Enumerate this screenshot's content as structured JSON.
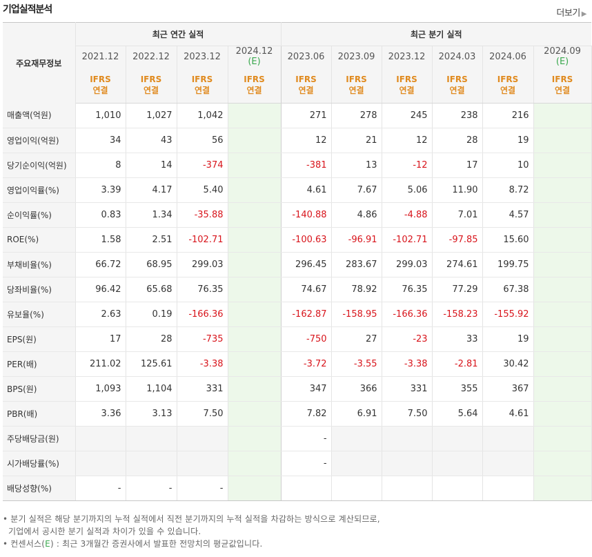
{
  "title": "기업실적분석",
  "more_label": "더보기",
  "header": {
    "label": "주요재무정보",
    "annual_group": "최근 연간 실적",
    "quarter_group": "최근 분기 실적",
    "annual_periods": [
      "2021.12",
      "2022.12",
      "2023.12",
      "2024.12"
    ],
    "quarter_periods": [
      "2023.06",
      "2023.09",
      "2023.12",
      "2024.03",
      "2024.06",
      "2024.09"
    ],
    "estimate_mark": "(E)",
    "ifrs": "IFRS",
    "consolidated": "연결"
  },
  "rows": [
    {
      "label": "매출액(억원)",
      "annual": [
        "1,010",
        "1,027",
        "1,042",
        ""
      ],
      "quarter": [
        "271",
        "278",
        "245",
        "238",
        "216",
        ""
      ]
    },
    {
      "label": "영업이익(억원)",
      "annual": [
        "34",
        "43",
        "56",
        ""
      ],
      "quarter": [
        "12",
        "21",
        "12",
        "28",
        "19",
        ""
      ]
    },
    {
      "label": "당기순이익(억원)",
      "annual": [
        "8",
        "14",
        "-374",
        ""
      ],
      "quarter": [
        "-381",
        "13",
        "-12",
        "17",
        "10",
        ""
      ]
    },
    {
      "label": "영업이익률(%)",
      "annual": [
        "3.39",
        "4.17",
        "5.40",
        ""
      ],
      "quarter": [
        "4.61",
        "7.67",
        "5.06",
        "11.90",
        "8.72",
        ""
      ]
    },
    {
      "label": "순이익률(%)",
      "annual": [
        "0.83",
        "1.34",
        "-35.88",
        ""
      ],
      "quarter": [
        "-140.88",
        "4.86",
        "-4.88",
        "7.01",
        "4.57",
        ""
      ]
    },
    {
      "label": "ROE(%)",
      "annual": [
        "1.58",
        "2.51",
        "-102.71",
        ""
      ],
      "quarter": [
        "-100.63",
        "-96.91",
        "-102.71",
        "-97.85",
        "15.60",
        ""
      ]
    },
    {
      "label": "부채비율(%)",
      "annual": [
        "66.72",
        "68.95",
        "299.03",
        ""
      ],
      "quarter": [
        "296.45",
        "283.67",
        "299.03",
        "274.61",
        "199.75",
        ""
      ]
    },
    {
      "label": "당좌비율(%)",
      "annual": [
        "96.42",
        "65.68",
        "76.35",
        ""
      ],
      "quarter": [
        "74.67",
        "78.92",
        "76.35",
        "77.29",
        "67.38",
        ""
      ]
    },
    {
      "label": "유보율(%)",
      "annual": [
        "2.63",
        "0.19",
        "-166.36",
        ""
      ],
      "quarter": [
        "-162.87",
        "-158.95",
        "-166.36",
        "-158.23",
        "-155.92",
        ""
      ]
    },
    {
      "label": "EPS(원)",
      "annual": [
        "17",
        "28",
        "-735",
        ""
      ],
      "quarter": [
        "-750",
        "27",
        "-23",
        "33",
        "19",
        ""
      ]
    },
    {
      "label": "PER(배)",
      "annual": [
        "211.02",
        "125.61",
        "-3.38",
        ""
      ],
      "quarter": [
        "-3.72",
        "-3.55",
        "-3.38",
        "-2.81",
        "30.42",
        ""
      ]
    },
    {
      "label": "BPS(원)",
      "annual": [
        "1,093",
        "1,104",
        "331",
        ""
      ],
      "quarter": [
        "347",
        "366",
        "331",
        "355",
        "367",
        ""
      ]
    },
    {
      "label": "PBR(배)",
      "annual": [
        "3.36",
        "3.13",
        "7.50",
        ""
      ],
      "quarter": [
        "7.82",
        "6.91",
        "7.50",
        "5.64",
        "4.61",
        ""
      ]
    },
    {
      "label": "주당배당금(원)",
      "annual": [
        "",
        "",
        "",
        ""
      ],
      "quarter": [
        "-",
        "",
        "",
        "",
        "",
        ""
      ]
    },
    {
      "label": "시가배당률(%)",
      "annual": [
        "",
        "",
        "",
        ""
      ],
      "quarter": [
        "-",
        "",
        "",
        "",
        "",
        ""
      ]
    },
    {
      "label": "배당성향(%)",
      "annual": [
        "-",
        "-",
        "-",
        ""
      ],
      "quarter": [
        "",
        "",
        "",
        "",
        "",
        ""
      ]
    }
  ],
  "notes": {
    "line1": "분기 실적은 해당 분기까지의 누적 실적에서 직전 분기까지의 누적 실적을 차감하는 방식으로 계산되므로,",
    "line2": "기업에서 공시한 분기 실적과 차이가 있을 수 있습니다.",
    "line3_pre": "컨센서스(",
    "line3_e": "E",
    "line3_post": ") : 최근 3개월간 증권사에서 발표한 전망치의 평균값입니다."
  }
}
